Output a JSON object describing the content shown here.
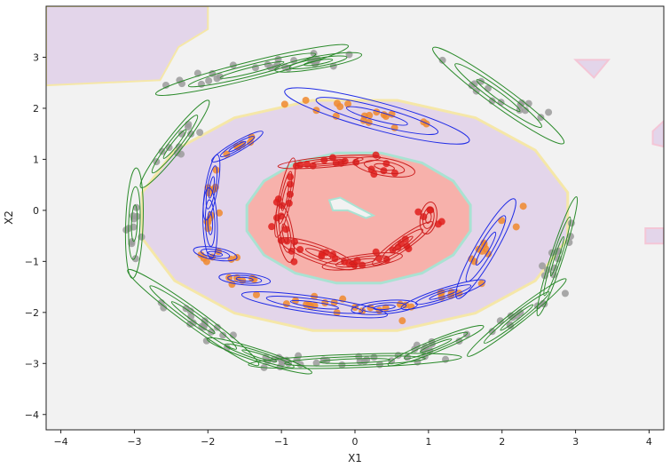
{
  "chart_data": {
    "type": "scatter",
    "title": "",
    "xlabel": "X1",
    "ylabel": "X2",
    "xlim": [
      -4.2,
      4.2
    ],
    "ylim": [
      -4.3,
      4.0
    ],
    "x_ticks": [
      -4,
      -3,
      -2,
      -1,
      0,
      1,
      2,
      3,
      4
    ],
    "y_ticks": [
      -4,
      -3,
      -2,
      -1,
      0,
      1,
      2,
      3
    ],
    "grid": false,
    "legend": "none",
    "colors": {
      "background": "#f2f2f2",
      "outer_region": "#e3d5ea",
      "inner_region": "#f7b1ab",
      "border_yellow": "#f5e7a8",
      "border_teal": "#a9e2d2",
      "class_gray": "#9b9b9b",
      "class_orange": "#f0882d",
      "class_red": "#e0201c",
      "ellipse_green": "#2a8a2a",
      "ellipse_blue": "#1f2be6",
      "ellipse_red": "#cc1f1f"
    },
    "regions": [
      {
        "name": "outer",
        "center": [
          0.0,
          -0.1
        ],
        "radii": [
          2.95,
          2.3
        ],
        "color": "outer_region",
        "edge": "border_yellow"
      },
      {
        "name": "inner",
        "center": [
          0.05,
          -0.15
        ],
        "radii": [
          1.55,
          1.3
        ],
        "color": "inner_region",
        "edge": "border_teal"
      }
    ],
    "series": [
      {
        "label_color": "class_gray",
        "ellipse_color": "ellipse_green",
        "components": [
          {
            "center": [
              -3.0,
              -0.25
            ],
            "rx": 0.75,
            "ry": 0.17,
            "angle": 88
          },
          {
            "center": [
              -2.45,
              1.3
            ],
            "rx": 0.75,
            "ry": 0.16,
            "angle": 52
          },
          {
            "center": [
              -1.4,
              2.75
            ],
            "rx": 1.35,
            "ry": 0.17,
            "angle": 14
          },
          {
            "center": [
              -0.5,
              2.9
            ],
            "rx": 0.6,
            "ry": 0.12,
            "angle": 10
          },
          {
            "center": [
              1.95,
              2.25
            ],
            "rx": 1.1,
            "ry": 0.2,
            "angle": -36
          },
          {
            "center": [
              2.75,
              -0.9
            ],
            "rx": 0.85,
            "ry": 0.12,
            "angle": 72
          },
          {
            "center": [
              2.2,
              -2.1
            ],
            "rx": 0.85,
            "ry": 0.13,
            "angle": 38
          },
          {
            "center": [
              1.1,
              -2.65
            ],
            "rx": 0.7,
            "ry": 0.12,
            "angle": 22
          },
          {
            "center": [
              0.0,
              -2.95
            ],
            "rx": 1.45,
            "ry": 0.13,
            "angle": 2
          },
          {
            "center": [
              -1.3,
              -2.85
            ],
            "rx": 0.75,
            "ry": 0.12,
            "angle": -18
          },
          {
            "center": [
              -2.2,
              -2.1
            ],
            "rx": 1.1,
            "ry": 0.17,
            "angle": -36
          }
        ]
      },
      {
        "label_color": "class_orange",
        "ellipse_color": "ellipse_blue",
        "components": [
          {
            "center": [
              0.3,
              1.85
            ],
            "rx": 1.3,
            "ry": 0.27,
            "angle": -15
          },
          {
            "center": [
              -1.6,
              1.25
            ],
            "rx": 0.4,
            "ry": 0.1,
            "angle": 30
          },
          {
            "center": [
              -1.95,
              0.45
            ],
            "rx": 0.45,
            "ry": 0.12,
            "angle": 80
          },
          {
            "center": [
              -1.97,
              -0.25
            ],
            "rx": 0.48,
            "ry": 0.14,
            "angle": 92
          },
          {
            "center": [
              -1.9,
              -0.85
            ],
            "rx": 0.3,
            "ry": 0.12,
            "angle": -10
          },
          {
            "center": [
              -1.5,
              -1.35
            ],
            "rx": 0.35,
            "ry": 0.11,
            "angle": -5
          },
          {
            "center": [
              -0.55,
              -1.85
            ],
            "rx": 1.0,
            "ry": 0.16,
            "angle": -8
          },
          {
            "center": [
              0.4,
              -1.9
            ],
            "rx": 0.45,
            "ry": 0.13,
            "angle": 5
          },
          {
            "center": [
              1.2,
              -1.65
            ],
            "rx": 0.6,
            "ry": 0.12,
            "angle": 18
          },
          {
            "center": [
              1.78,
              -0.75
            ],
            "rx": 0.78,
            "ry": 0.2,
            "angle": 60
          }
        ]
      },
      {
        "label_color": "class_red",
        "ellipse_color": "ellipse_red",
        "components": [
          {
            "center": [
              -0.35,
              0.95
            ],
            "rx": 0.7,
            "ry": 0.1,
            "angle": 5
          },
          {
            "center": [
              0.4,
              0.85
            ],
            "rx": 0.42,
            "ry": 0.17,
            "angle": -10
          },
          {
            "center": [
              -0.95,
              0.25
            ],
            "rx": 0.55,
            "ry": 0.12,
            "angle": 78
          },
          {
            "center": [
              -0.95,
              -0.45
            ],
            "rx": 0.4,
            "ry": 0.15,
            "angle": 100
          },
          {
            "center": [
              -0.5,
              -0.85
            ],
            "rx": 0.55,
            "ry": 0.17,
            "angle": -20
          },
          {
            "center": [
              0.1,
              -1.0
            ],
            "rx": 0.55,
            "ry": 0.13,
            "angle": 8
          },
          {
            "center": [
              0.65,
              -0.65
            ],
            "rx": 0.5,
            "ry": 0.13,
            "angle": 35
          },
          {
            "center": [
              1.0,
              -0.15
            ],
            "rx": 0.22,
            "ry": 0.16,
            "angle": 80
          }
        ]
      }
    ]
  }
}
